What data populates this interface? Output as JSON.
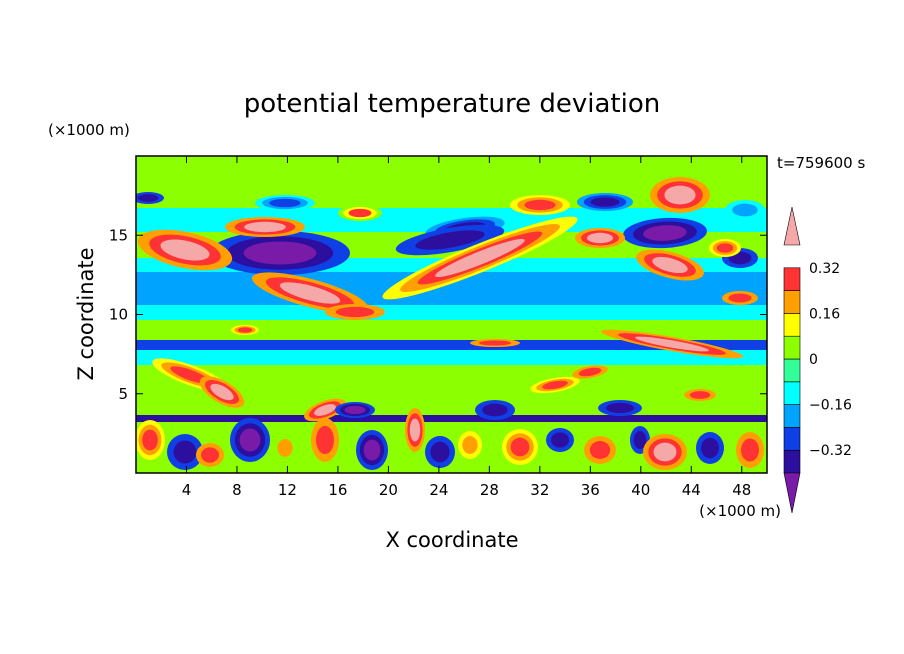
{
  "chart_data": {
    "type": "heatmap",
    "title": "potential temperature deviation",
    "xlabel": "X coordinate",
    "ylabel": "Z coordinate",
    "x_unit": "(×1000 m)",
    "y_unit": "(×1000 m)",
    "time_label": "t=759600 s",
    "xlim": [
      0,
      50
    ],
    "ylim": [
      0,
      20
    ],
    "x_ticks": [
      4,
      8,
      12,
      16,
      20,
      24,
      28,
      32,
      36,
      40,
      44,
      48
    ],
    "y_ticks": [
      5,
      10,
      15
    ],
    "colorbar": {
      "levels": [
        -0.4,
        -0.32,
        -0.24,
        -0.16,
        -0.08,
        0,
        0.08,
        0.16,
        0.24,
        0.32,
        0.4
      ],
      "labels": [
        "0.32",
        "0.16",
        "0",
        "−0.16",
        "−0.32"
      ],
      "label_values": [
        0.32,
        0.16,
        0,
        -0.16,
        -0.32
      ],
      "colors": [
        "#7a1aa8",
        "#2d0fa0",
        "#0f40e6",
        "#00a4ff",
        "#00ffff",
        "#33ff99",
        "#8cff00",
        "#ffff00",
        "#ffa000",
        "#ff3333",
        "#f5a8a8"
      ]
    }
  }
}
